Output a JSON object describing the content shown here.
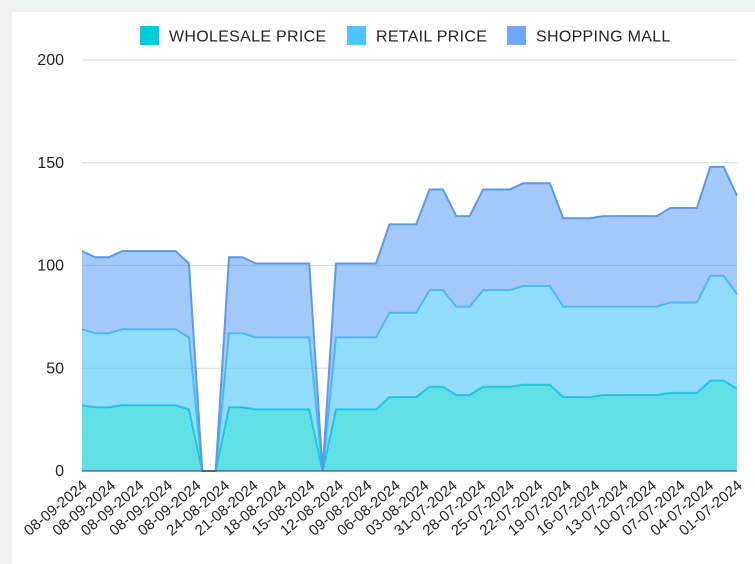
{
  "chart_data": {
    "type": "area",
    "stacked": true,
    "x_tick_labels": [
      "08-09-2024",
      "08-09-2024",
      "08-09-2024",
      "08-09-2024",
      "08-09-2024",
      "24-08-2024",
      "21-08-2024",
      "18-08-2024",
      "15-08-2024",
      "12-08-2024",
      "09-08-2024",
      "06-08-2024",
      "03-08-2024",
      "31-07-2024",
      "28-07-2024",
      "25-07-2024",
      "22-07-2024",
      "19-07-2024",
      "16-07-2024",
      "13-07-2024",
      "10-07-2024",
      "07-07-2024",
      "04-07-2024",
      "01-07-2024"
    ],
    "y_ticks": [
      0,
      50,
      100,
      150,
      200
    ],
    "ylim": [
      0,
      200
    ],
    "grid": "horizontal",
    "legend_position": "top",
    "series": [
      {
        "name": "WHOLESALE PRICE",
        "color": "#00cbd8",
        "values": [
          32,
          31,
          31,
          32,
          32,
          32,
          32,
          32,
          30,
          0,
          0,
          31,
          31,
          30,
          30,
          30,
          30,
          30,
          0,
          30,
          30,
          30,
          30,
          36,
          36,
          36,
          41,
          41,
          37,
          37,
          41,
          41,
          41,
          42,
          42,
          42,
          36,
          36,
          36,
          37,
          37,
          37,
          37,
          37,
          38,
          38,
          38,
          44,
          44,
          40
        ]
      },
      {
        "name": "RETAIL PRICE",
        "color": "#4dc5f8",
        "values": [
          37,
          36,
          36,
          37,
          37,
          37,
          37,
          37,
          35,
          0,
          0,
          36,
          36,
          35,
          35,
          35,
          35,
          35,
          0,
          35,
          35,
          35,
          35,
          41,
          41,
          41,
          47,
          47,
          43,
          43,
          47,
          47,
          47,
          48,
          48,
          48,
          44,
          44,
          44,
          43,
          43,
          43,
          43,
          43,
          44,
          44,
          44,
          51,
          51,
          46
        ]
      },
      {
        "name": "SHOPPING MALL",
        "color": "#6ba8f8",
        "values": [
          38,
          37,
          37,
          38,
          38,
          38,
          38,
          38,
          36,
          0,
          0,
          37,
          37,
          36,
          36,
          36,
          36,
          36,
          0,
          36,
          36,
          36,
          36,
          43,
          43,
          43,
          49,
          49,
          44,
          44,
          49,
          49,
          49,
          50,
          50,
          50,
          43,
          43,
          43,
          44,
          44,
          44,
          44,
          44,
          46,
          46,
          46,
          53,
          53,
          48
        ]
      }
    ]
  }
}
